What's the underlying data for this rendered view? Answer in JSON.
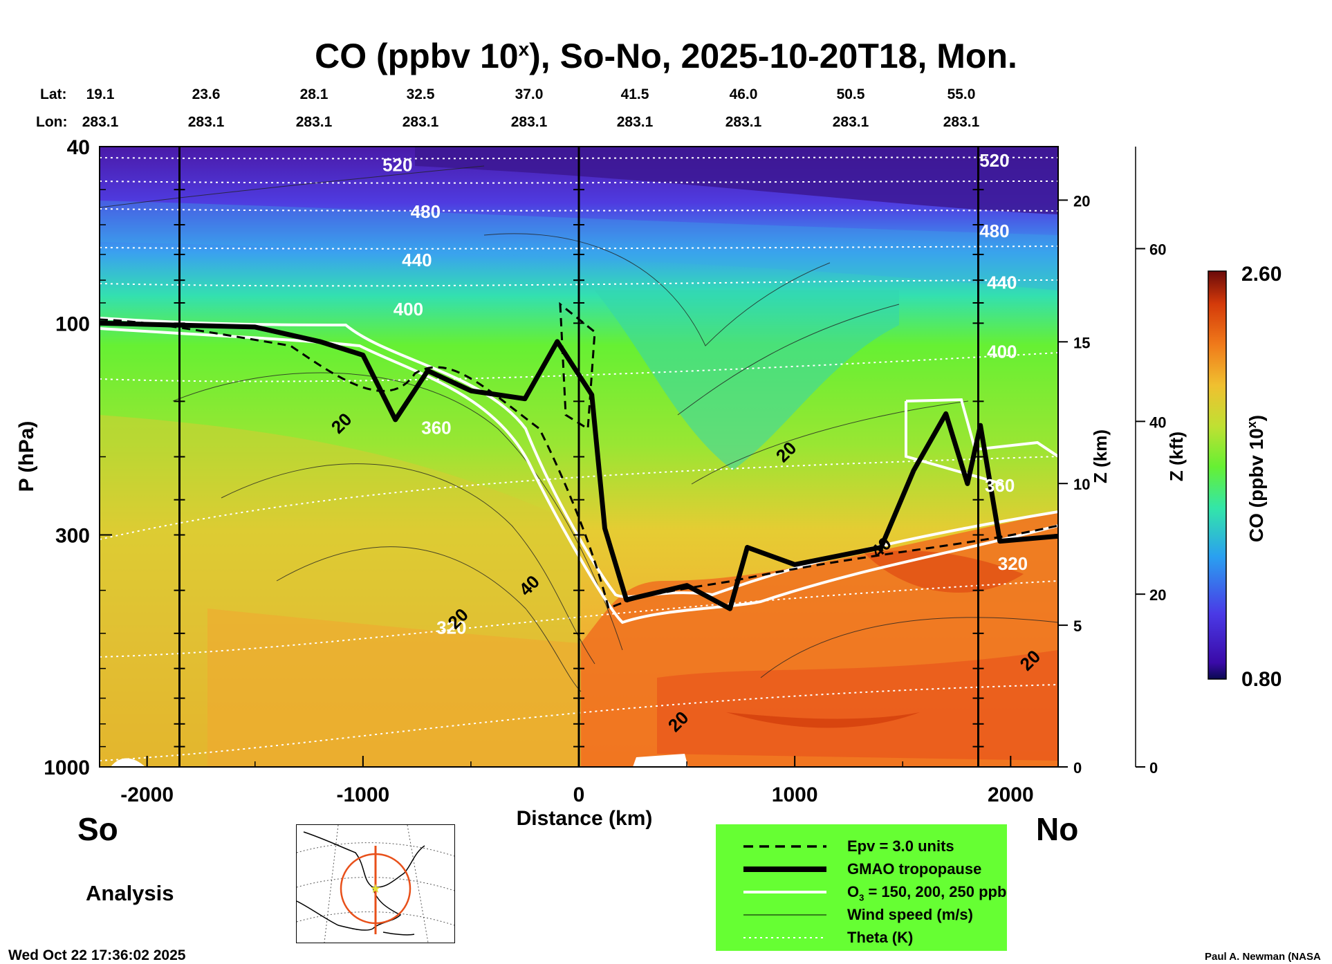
{
  "title": "CO (ppbv 10",
  "title_sup": "x",
  "title_suffix": "), So-No, 2025-10-20T18, Mon.",
  "lat_label": "Lat:",
  "lon_label": "Lon:",
  "lats": [
    "19.1",
    "23.6",
    "28.1",
    "32.5",
    "37.0",
    "41.5",
    "46.0",
    "50.5",
    "55.0"
  ],
  "lons": [
    "283.1",
    "283.1",
    "283.1",
    "283.1",
    "283.1",
    "283.1",
    "283.1",
    "283.1",
    "283.1"
  ],
  "south_label": "So",
  "north_label": "No",
  "analysis_label": "Analysis",
  "timestamp": "Wed Oct 22 17:36:02 2025",
  "credit": "Paul A. Newman (NASA",
  "legend": {
    "epv": "Epv = 3.0 units",
    "tropopause": "GMAO tropopause",
    "ozone_prefix": "O",
    "ozone_sub": "3",
    "ozone_suffix": " = 150, 200, 250 ppb",
    "wind": "Wind speed (m/s)",
    "theta": "Theta (K)"
  },
  "colors": {
    "ozone": "#ffffff",
    "tropopause": "#000000",
    "legend_bg": "#66ff33"
  },
  "chart_data": {
    "type": "heatmap",
    "title": "CO (ppbv 10^x), So-No, 2025-10-20T18, Mon.",
    "xlabel": "Distance (km)",
    "ylabel": "P (hPa)",
    "xlim": [
      -2220,
      2220
    ],
    "ylim": [
      1000,
      40
    ],
    "x_ticks": [
      -2000,
      -1000,
      0,
      1000,
      2000
    ],
    "x_tick_labels": [
      "-2000",
      "-1000",
      "0",
      "1000",
      "2000"
    ],
    "y_ticks": [
      40,
      100,
      300,
      1000
    ],
    "y_tick_labels": [
      "40",
      "100",
      "300",
      "1000"
    ],
    "right_axes": [
      {
        "label": "Z (km)",
        "ticks": [
          0,
          5,
          10,
          15,
          20
        ],
        "tick_labels": [
          "0",
          "5",
          "10",
          "15",
          "20"
        ]
      },
      {
        "label": "Z (kft)",
        "ticks": [
          0,
          20,
          40,
          60
        ],
        "tick_labels": [
          "0",
          "20",
          "40",
          "60"
        ]
      }
    ],
    "colorbar": {
      "label": "CO (ppbv 10",
      "label_sup": "x",
      "label_suffix": ")",
      "min": 0.8,
      "max": 2.6,
      "min_label": "0.80",
      "max_label": "2.60"
    },
    "vertical_lines_km": [
      -1850,
      0,
      1850
    ],
    "theta_labels": [
      {
        "text": "520",
        "x": -840,
        "p": 44
      },
      {
        "text": "480",
        "x": -710,
        "p": 56
      },
      {
        "text": "440",
        "x": -750,
        "p": 72
      },
      {
        "text": "400",
        "x": -790,
        "p": 93
      },
      {
        "text": "360",
        "x": -660,
        "p": 172
      },
      {
        "text": "320",
        "x": -590,
        "p": 485
      },
      {
        "text": "520",
        "x": 1925,
        "p": 43
      },
      {
        "text": "480",
        "x": 1925,
        "p": 62
      },
      {
        "text": "440",
        "x": 1960,
        "p": 81
      },
      {
        "text": "400",
        "x": 1960,
        "p": 116
      },
      {
        "text": "360",
        "x": 1950,
        "p": 232
      },
      {
        "text": "320",
        "x": 2010,
        "p": 348
      }
    ],
    "wind_labels": [
      {
        "text": "20",
        "x": -1100,
        "p": 168
      },
      {
        "text": "20",
        "x": 960,
        "p": 195
      },
      {
        "text": "40",
        "x": -230,
        "p": 390
      },
      {
        "text": "20",
        "x": -560,
        "p": 463
      },
      {
        "text": "40",
        "x": 1400,
        "p": 320
      },
      {
        "text": "20",
        "x": 2090,
        "p": 575
      },
      {
        "text": "20",
        "x": 460,
        "p": 790
      }
    ],
    "tropopause_p": [
      {
        "x": -2220,
        "p": 100
      },
      {
        "x": -1500,
        "p": 102
      },
      {
        "x": -1200,
        "p": 110
      },
      {
        "x": -1000,
        "p": 118
      },
      {
        "x": -850,
        "p": 165
      },
      {
        "x": -700,
        "p": 128
      },
      {
        "x": -500,
        "p": 142
      },
      {
        "x": -250,
        "p": 148
      },
      {
        "x": -100,
        "p": 110
      },
      {
        "x": 60,
        "p": 145
      },
      {
        "x": 120,
        "p": 290
      },
      {
        "x": 220,
        "p": 420
      },
      {
        "x": 500,
        "p": 390
      },
      {
        "x": 700,
        "p": 440
      },
      {
        "x": 780,
        "p": 320
      },
      {
        "x": 1000,
        "p": 350
      },
      {
        "x": 1400,
        "p": 320
      },
      {
        "x": 1550,
        "p": 215
      },
      {
        "x": 1700,
        "p": 160
      },
      {
        "x": 1800,
        "p": 230
      },
      {
        "x": 1860,
        "p": 170
      },
      {
        "x": 1950,
        "p": 310
      },
      {
        "x": 2220,
        "p": 302
      }
    ]
  }
}
